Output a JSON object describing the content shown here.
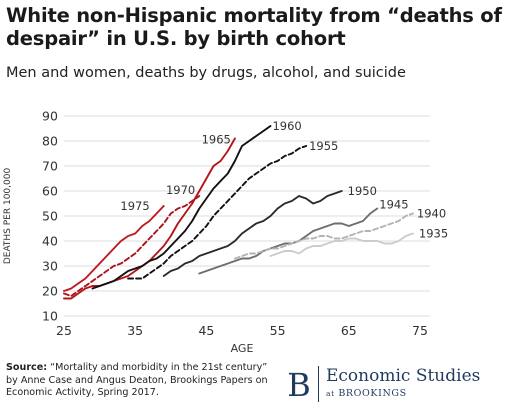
{
  "chart_data": {
    "type": "line",
    "title": "White non-Hispanic mortality from “deaths of despair” in U.S. by birth cohort",
    "subtitle": "Men and women, deaths by drugs, alcohol, and suicide",
    "xlabel": "AGE",
    "ylabel": "DEATHS PER 100,000",
    "xlim": [
      25,
      75
    ],
    "ylim": [
      10,
      90
    ],
    "x_ticks": [
      25,
      35,
      45,
      55,
      65,
      75
    ],
    "y_ticks": [
      10,
      20,
      30,
      40,
      50,
      60,
      70,
      80,
      90
    ],
    "grid": "horizontal",
    "legend": "labels at line ends",
    "series": [
      {
        "name": "1975",
        "color": "#c0191f",
        "dash": "solid",
        "x": [
          25,
          26,
          27,
          28,
          29,
          30,
          31,
          32,
          33,
          34,
          35,
          36,
          37,
          38,
          39
        ],
        "y": [
          20,
          21,
          23,
          25,
          28,
          31,
          34,
          37,
          40,
          42,
          43,
          46,
          48,
          51,
          54
        ]
      },
      {
        "name": "1970",
        "color": "#a8141a",
        "dash": "dashed",
        "x": [
          25,
          26,
          27,
          28,
          29,
          30,
          31,
          32,
          33,
          34,
          35,
          36,
          37,
          38,
          39,
          40,
          41,
          42,
          43,
          44
        ],
        "y": [
          19,
          18,
          20,
          22,
          24,
          26,
          28,
          30,
          31,
          33,
          35,
          38,
          41,
          44,
          47,
          51,
          53,
          54,
          56,
          58
        ]
      },
      {
        "name": "1965",
        "color": "#b3151b",
        "dash": "solid",
        "x": [
          25,
          26,
          27,
          28,
          29,
          30,
          31,
          32,
          33,
          34,
          35,
          36,
          37,
          38,
          39,
          40,
          41,
          42,
          43,
          44,
          45,
          46,
          47,
          48,
          49
        ],
        "y": [
          17,
          17,
          19,
          21,
          22,
          22,
          23,
          24,
          25,
          26,
          28,
          30,
          32,
          35,
          38,
          42,
          47,
          51,
          55,
          60,
          65,
          70,
          72,
          76,
          81
        ]
      },
      {
        "name": "1960",
        "color": "#111111",
        "dash": "solid",
        "x": [
          29,
          30,
          31,
          32,
          33,
          34,
          35,
          36,
          37,
          38,
          39,
          40,
          41,
          42,
          43,
          44,
          45,
          46,
          47,
          48,
          49,
          50,
          51,
          52,
          53,
          54
        ],
        "y": [
          21,
          22,
          23,
          24,
          26,
          28,
          29,
          30,
          32,
          33,
          35,
          38,
          41,
          44,
          48,
          53,
          57,
          61,
          64,
          67,
          72,
          78,
          80,
          82,
          84,
          86
        ]
      },
      {
        "name": "1955",
        "color": "#111111",
        "dash": "dashed",
        "x": [
          34,
          35,
          36,
          37,
          38,
          39,
          40,
          41,
          42,
          43,
          44,
          45,
          46,
          47,
          48,
          49,
          50,
          51,
          52,
          53,
          54,
          55,
          56,
          57,
          58,
          59
        ],
        "y": [
          25,
          25,
          25,
          27,
          29,
          31,
          34,
          36,
          38,
          40,
          43,
          46,
          50,
          53,
          56,
          59,
          62,
          65,
          67,
          69,
          71,
          72,
          74,
          75,
          77,
          78
        ]
      },
      {
        "name": "1950",
        "color": "#2a2a2a",
        "dash": "solid",
        "x": [
          39,
          40,
          41,
          42,
          43,
          44,
          45,
          46,
          47,
          48,
          49,
          50,
          51,
          52,
          53,
          54,
          55,
          56,
          57,
          58,
          59,
          60,
          61,
          62,
          63,
          64
        ],
        "y": [
          26,
          28,
          29,
          31,
          32,
          34,
          35,
          36,
          37,
          38,
          40,
          43,
          45,
          47,
          48,
          50,
          53,
          55,
          56,
          58,
          57,
          55,
          56,
          58,
          59,
          60
        ]
      },
      {
        "name": "1945",
        "color": "#6e6e6e",
        "dash": "solid",
        "x": [
          44,
          45,
          46,
          47,
          48,
          49,
          50,
          51,
          52,
          53,
          54,
          55,
          56,
          57,
          58,
          59,
          60,
          61,
          62,
          63,
          64,
          65,
          66,
          67,
          68,
          69
        ],
        "y": [
          27,
          28,
          29,
          30,
          31,
          32,
          33,
          33,
          34,
          36,
          37,
          38,
          39,
          39,
          40,
          42,
          44,
          45,
          46,
          47,
          47,
          46,
          47,
          48,
          51,
          53
        ]
      },
      {
        "name": "1940",
        "color": "#b3b3b3",
        "dash": "dashed",
        "x": [
          49,
          50,
          51,
          52,
          53,
          54,
          55,
          56,
          57,
          58,
          59,
          60,
          61,
          62,
          63,
          64,
          65,
          66,
          67,
          68,
          69,
          70,
          71,
          72,
          73,
          74
        ],
        "y": [
          33,
          34,
          35,
          35,
          36,
          37,
          37,
          38,
          39,
          40,
          41,
          41,
          42,
          42,
          41,
          41,
          42,
          43,
          44,
          44,
          45,
          46,
          47,
          48,
          50,
          51
        ]
      },
      {
        "name": "1935",
        "color": "#cccccc",
        "dash": "solid",
        "x": [
          54,
          55,
          56,
          57,
          58,
          59,
          60,
          61,
          62,
          63,
          64,
          65,
          66,
          67,
          68,
          69,
          70,
          71,
          72,
          73,
          74
        ],
        "y": [
          34,
          35,
          36,
          36,
          35,
          37,
          38,
          38,
          39,
          40,
          40,
          41,
          41,
          40,
          40,
          40,
          39,
          39,
          40,
          42,
          43
        ]
      }
    ]
  },
  "footer": {
    "source_label": "Source:",
    "source_text": "“Mortality and morbidity in the 21st century” by Anne Case and Angus Deaton, Brookings Papers on Economic Activity, Spring 2017.",
    "brand_letter": "B",
    "brand_name": "Economic Studies",
    "brand_at": "at",
    "brand_org": "BROOKINGS"
  }
}
